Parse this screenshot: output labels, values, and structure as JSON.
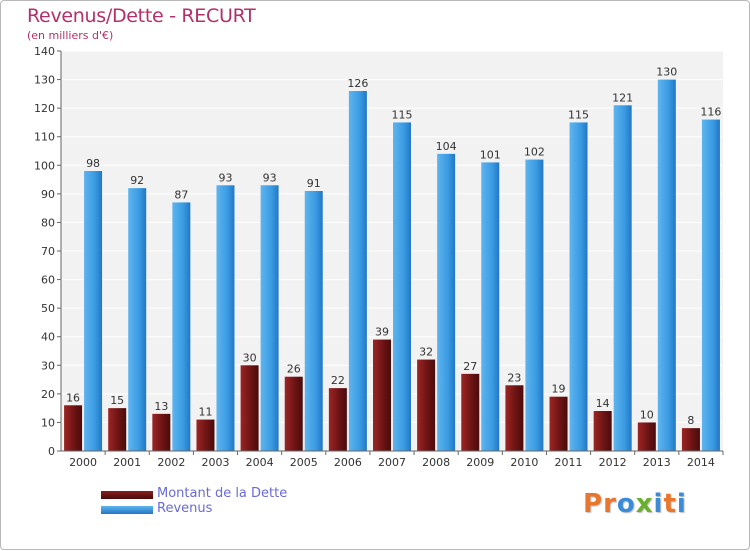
{
  "header": {
    "title": "Revenus/Dette - RECURT",
    "subtitle": "(en milliers d'€)"
  },
  "legend": {
    "debt_label": "Montant de la Dette",
    "revenue_label": "Revenus"
  },
  "logo": {
    "text": "Proxiti",
    "letter_colors": [
      "#e8762c",
      "#e8762c",
      "#3a8bd8",
      "#69b02c",
      "#3a8bd8",
      "#e8762c",
      "#3a8bd8"
    ]
  },
  "colors": {
    "debt": "#7a1a1a",
    "revenue": "#3a9be3"
  },
  "chart_data": {
    "type": "bar",
    "title": "Revenus/Dette - RECURT",
    "subtitle": "(en milliers d'€)",
    "categories": [
      "2000",
      "2001",
      "2002",
      "2003",
      "2004",
      "2005",
      "2006",
      "2007",
      "2008",
      "2009",
      "2010",
      "2011",
      "2012",
      "2013",
      "2014"
    ],
    "series": [
      {
        "name": "Montant de la Dette",
        "values": [
          16,
          15,
          13,
          11,
          30,
          26,
          22,
          39,
          32,
          27,
          23,
          19,
          14,
          10,
          8
        ]
      },
      {
        "name": "Revenus",
        "values": [
          98,
          92,
          87,
          93,
          93,
          91,
          126,
          115,
          104,
          101,
          102,
          115,
          121,
          130,
          116
        ]
      }
    ],
    "ylim": [
      0,
      140
    ],
    "yticks": [
      0,
      10,
      20,
      30,
      40,
      50,
      60,
      70,
      80,
      90,
      100,
      110,
      120,
      130,
      140
    ],
    "grid": true,
    "legend_position": "bottom-left"
  }
}
